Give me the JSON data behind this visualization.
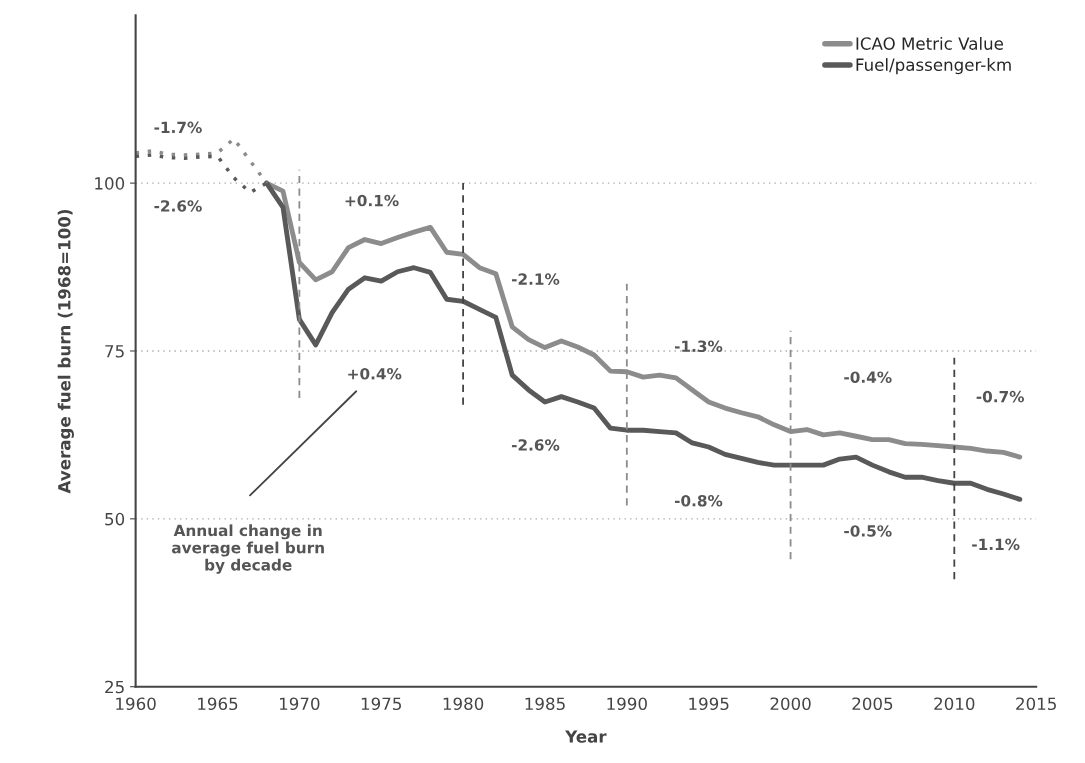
{
  "chart_data": {
    "type": "line",
    "xlabel": "Year",
    "ylabel": "Average fuel burn (1968=100)",
    "xlim": [
      1960,
      2015
    ],
    "xticks": [
      1960,
      1965,
      1970,
      1975,
      1980,
      1985,
      1990,
      1995,
      2000,
      2005,
      2010,
      2015
    ],
    "ylim": [
      25,
      125
    ],
    "yticks": [
      25,
      50,
      75,
      100
    ],
    "grid": "y",
    "legend": "top right",
    "marker": "none",
    "series": [
      {
        "name": "ICAO Metric Value",
        "color": "#8c8c8c",
        "line_style": "solid",
        "x": [
          1968,
          1969,
          1970,
          1971,
          1972,
          1973,
          1974,
          1975,
          1976,
          1977,
          1978,
          1979,
          1980,
          1981,
          1982,
          1983,
          1984,
          1985,
          1986,
          1987,
          1988,
          1989,
          1990,
          1991,
          1992,
          1993,
          1994,
          1995,
          1996,
          1997,
          1998,
          1999,
          2000,
          2001,
          2002,
          2003,
          2004,
          2005,
          2006,
          2007,
          2008,
          2009,
          2010,
          2011,
          2012,
          2013,
          2014
        ],
        "values": [
          100,
          98.8,
          88.2,
          85.6,
          86.8,
          90.4,
          91.6,
          91.0,
          91.9,
          92.7,
          93.4,
          89.7,
          89.4,
          87.4,
          86.5,
          78.6,
          76.7,
          75.5,
          76.5,
          75.6,
          74.4,
          72.0,
          71.9,
          71.1,
          71.4,
          71.0,
          69.2,
          67.4,
          66.5,
          65.8,
          65.2,
          64.0,
          63.0,
          63.3,
          62.5,
          62.8,
          62.3,
          61.8,
          61.8,
          61.2,
          61.1,
          60.9,
          60.7,
          60.5,
          60.1,
          59.9,
          59.2
        ]
      },
      {
        "name": "Fuel/passenger-km",
        "color": "#595959",
        "line_style": "solid",
        "x": [
          1968,
          1969,
          1970,
          1971,
          1972,
          1973,
          1974,
          1975,
          1976,
          1977,
          1978,
          1979,
          1980,
          1981,
          1982,
          1983,
          1984,
          1985,
          1986,
          1987,
          1988,
          1989,
          1990,
          1991,
          1992,
          1993,
          1994,
          1995,
          1996,
          1997,
          1998,
          1999,
          2000,
          2001,
          2002,
          2003,
          2004,
          2005,
          2006,
          2007,
          2008,
          2009,
          2010,
          2011,
          2012,
          2013,
          2014
        ],
        "values": [
          100,
          96.4,
          79.7,
          75.9,
          80.7,
          84.2,
          85.9,
          85.4,
          86.8,
          87.4,
          86.7,
          82.7,
          82.4,
          81.2,
          80.0,
          71.4,
          69.2,
          67.4,
          68.2,
          67.4,
          66.5,
          63.5,
          63.2,
          63.2,
          63.0,
          62.8,
          61.3,
          60.7,
          59.6,
          59.0,
          58.4,
          58.0,
          58.0,
          58.0,
          58.0,
          58.9,
          59.2,
          58.0,
          57.0,
          56.2,
          56.2,
          55.7,
          55.3,
          55.3,
          54.4,
          53.7,
          52.9
        ]
      },
      {
        "color": "#8c8c8c",
        "line_style": "dotted",
        "x": [
          1960,
          1961,
          1962,
          1963,
          1964,
          1965,
          1966,
          1967,
          1968
        ],
        "values": [
          104.5,
          104.8,
          104.3,
          104.2,
          104.3,
          104.5,
          106.6,
          103.3,
          100
        ]
      },
      {
        "color": "#595959",
        "line_style": "dotted",
        "x": [
          1960,
          1961,
          1962,
          1963,
          1964,
          1965,
          1966,
          1967,
          1968
        ],
        "values": [
          104.0,
          104.2,
          103.8,
          103.7,
          103.9,
          104.0,
          100.8,
          98.6,
          100
        ]
      }
    ],
    "ref_lines": [
      {
        "axis": "x",
        "value": 1970,
        "color": "#8c8c8c",
        "line_style": "dashed"
      },
      {
        "axis": "x",
        "value": 1980,
        "color": "#444444",
        "line_style": "dashed"
      },
      {
        "axis": "x",
        "value": 1990,
        "color": "#8c8c8c",
        "line_style": "dashed"
      },
      {
        "axis": "x",
        "value": 2000,
        "color": "#8c8c8c",
        "line_style": "dashed"
      },
      {
        "axis": "x",
        "value": 2010,
        "color": "#444444",
        "line_style": "dashed"
      }
    ],
    "annotations": [
      "-1.7%",
      "-2.6%",
      "+0.1%",
      "+0.4%",
      "-2.1%",
      "-2.6%",
      "-1.3%",
      "-0.8%",
      "-0.4%",
      "-0.5%",
      "-0.7%",
      "-1.1%",
      "Annual change in\naverage fuel burn\nby decade"
    ]
  }
}
